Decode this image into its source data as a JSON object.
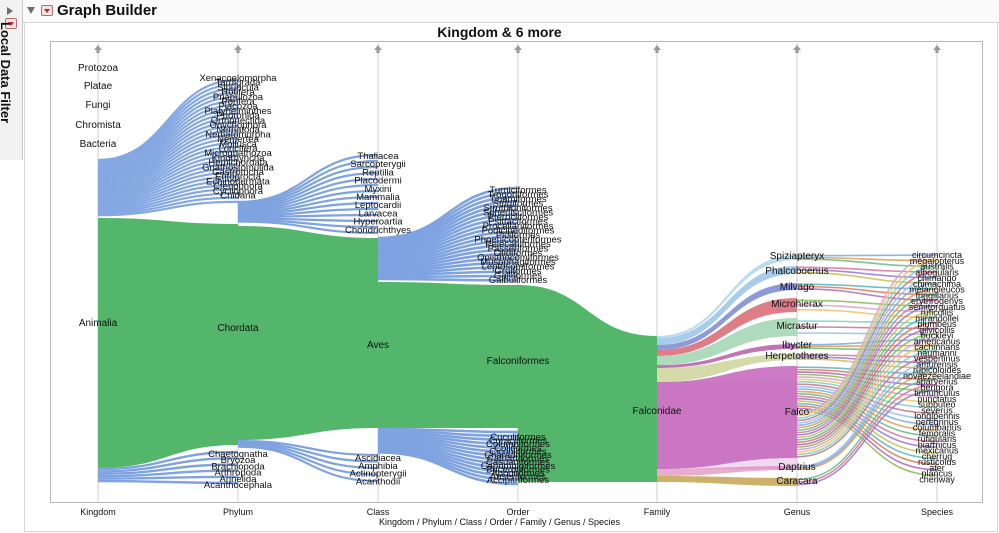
{
  "app": {
    "title": "Graph Builder",
    "local_filter_label": "Local Data Filter"
  },
  "chart_data": {
    "type": "parallel-sets",
    "title": "Kingdom & 6 more",
    "xlabel": "Kingdom / Phylum / Class / Order / Family / Genus / Species",
    "columns": [
      "Kingdom",
      "Phylum",
      "Class",
      "Order",
      "Family",
      "Genus",
      "Species"
    ],
    "main_path": [
      "Animalia",
      "Chordata",
      "Aves",
      "Falconiformes",
      "Falconidae"
    ],
    "levels": [
      {
        "name": "Kingdom",
        "categories": [
          "Protozoa",
          "Platae",
          "Fungi",
          "Chromista",
          "Bacteria",
          "Animalia"
        ]
      },
      {
        "name": "Phylum",
        "categories": [
          "Xenacoelomorpha",
          "Tardigrada",
          "Sipuncula",
          "Rotifera",
          "Priapulozoa",
          "Porifera",
          "Placozoa",
          "Platyhelminthes",
          "Phoronida",
          "Orthonectida",
          "Onychophora",
          "Nematoda",
          "Nematomorpha",
          "Nemertea",
          "Mollusca",
          "Loricifera",
          "Micrognathozoa",
          "Kinorhyncha",
          "Hemichordata",
          "Gnathostomulida",
          "Gastrotricha",
          "Entoprocta",
          "Echinodermata",
          "Ctenophora",
          "Cycliophora",
          "Cnidaria",
          "Chordata",
          "Chaetognatha",
          "Bryozoa",
          "Brachiopoda",
          "Arthropoda",
          "Annelida",
          "Acanthocephala"
        ]
      },
      {
        "name": "Class",
        "categories": [
          "Thaliacea",
          "Sarcopterygii",
          "Reptilia",
          "Placodermi",
          "Myxini",
          "Mammalia",
          "Leptocardii",
          "Larvacea",
          "Hyperoartia",
          "Chondrichthyes",
          "Aves",
          "Ascidiacea",
          "Amphibia",
          "Actinopterygii",
          "Acanthodii"
        ]
      },
      {
        "name": "Order",
        "categories": [
          "Turniciformes",
          "Trogoniformes",
          "Tinamiformes",
          "Strigiformes",
          "Struthioniformes",
          "Sphenisciformes",
          "Pterocliformes",
          "Psittaciformes",
          "Procellariiformes",
          "Podicipediformes",
          "Piciformes",
          "Phoenicopteriformes",
          "Pelecaniformes",
          "Passeriformes",
          "Otidiformes",
          "Opisthocomiformes",
          "Musophagiformes",
          "Leptosomiformes",
          "Gruiformes",
          "Galliformes",
          "Galbuliformes",
          "Falconiformes",
          "Cuculiformes",
          "Coraciiformes",
          "Columbiformes",
          "Coliiformes",
          "Ciconiiformes",
          "Charadriiformes",
          "Cathartiformes",
          "Casuariiformes",
          "Caprimulgiformes",
          "Bucerotiformes",
          "Apodiformes",
          "Anseriformes",
          "Accipitriformes"
        ]
      },
      {
        "name": "Family",
        "categories": [
          "Falconidae"
        ]
      },
      {
        "name": "Genus",
        "categories": [
          "Spiziapteryx",
          "Phalcoboenus",
          "Milvago",
          "Microhierax",
          "Micrastur",
          "Ibycter",
          "Herpetotheres",
          "Falco",
          "Daptrius",
          "Caracara"
        ]
      },
      {
        "name": "Species",
        "categories": [
          "circumcincta",
          "megalopterus",
          "australis",
          "albogularis",
          "chimango",
          "chimachima",
          "melanoleucos",
          "fringillarius",
          "erythrogenys",
          "semitorquatus",
          "ruficollis",
          "mirandollei",
          "plumbeus",
          "gilvicollis",
          "buckleyi",
          "americanus",
          "cachinnans",
          "naumanni",
          "vespertinus",
          "amurensis",
          "rupicoloides",
          "novaezeelandiae",
          "sparverius",
          "berigora",
          "tinnunculus",
          "punctatus",
          "subbuteo",
          "severus",
          "longipennis",
          "peregrinus",
          "columbarius",
          "femoralis",
          "rufigularis",
          "biarmicus",
          "mexicanus",
          "cherrug",
          "rusticolus",
          "ater",
          "plancus",
          "cheriway"
        ]
      }
    ],
    "flows_from_hub": [
      {
        "from": "Falconidae",
        "to": "Spiziapteryx",
        "color": "#b3d9ec"
      },
      {
        "from": "Falconidae",
        "to": "Phalcoboenus",
        "color": "#9fc6e7"
      },
      {
        "from": "Falconidae",
        "to": "Milvago",
        "color": "#7f8fd6"
      },
      {
        "from": "Falconidae",
        "to": "Microhierax",
        "color": "#d9707a"
      },
      {
        "from": "Falconidae",
        "to": "Micrastur",
        "color": "#a6d7b6"
      },
      {
        "from": "Falconidae",
        "to": "Ibycter",
        "color": "#b866b0"
      },
      {
        "from": "Falconidae",
        "to": "Herpetotheres",
        "color": "#cfd7a0"
      },
      {
        "from": "Falconidae",
        "to": "Falco",
        "color": "#c86bbf"
      },
      {
        "from": "Falconidae",
        "to": "Daptrius",
        "color": "#e7a3c8"
      },
      {
        "from": "Falconidae",
        "to": "Caracara",
        "color": "#c8a95b"
      }
    ],
    "colors": {
      "mass": "#54b66b",
      "other": "#7ea3e0",
      "falco": "#c86bbf"
    },
    "grid": true,
    "legend": "none"
  }
}
